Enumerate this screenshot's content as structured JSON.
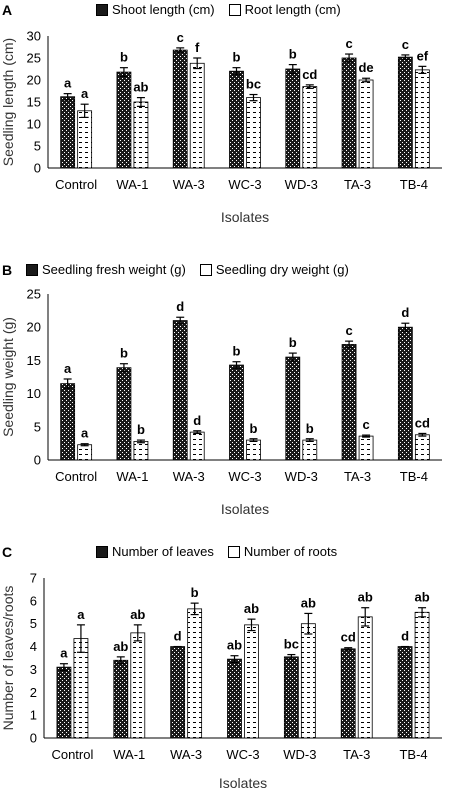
{
  "colors": {
    "series_a_fill": "#1a1a1a",
    "series_b_fill": "#ffffff",
    "axis": "#000000",
    "error_bar": "#000000"
  },
  "chart_data": [
    {
      "panel_label": "A",
      "type": "bar",
      "categories": [
        "Control",
        "WA-1",
        "WA-3",
        "WC-3",
        "WD-3",
        "TA-3",
        "TB-4"
      ],
      "series": [
        {
          "name": "Shoot length (cm)",
          "pattern": "checker",
          "values": [
            16.2,
            21.8,
            26.8,
            22.0,
            22.5,
            25.0,
            25.2
          ],
          "errors": [
            0.7,
            1.0,
            0.5,
            0.8,
            1.0,
            0.9,
            0.5
          ],
          "letters": [
            "a",
            "b",
            "c",
            "b",
            "b",
            "c",
            "c"
          ]
        },
        {
          "name": "Root length (cm)",
          "pattern": "dash",
          "values": [
            13.0,
            15.0,
            23.8,
            16.0,
            18.5,
            20.0,
            22.3
          ],
          "errors": [
            1.5,
            1.0,
            1.2,
            0.7,
            0.4,
            0.4,
            0.8
          ],
          "letters": [
            "a",
            "ab",
            "f",
            "bc",
            "cd",
            "de",
            "ef"
          ]
        }
      ],
      "xlabel": "Isolates",
      "ylabel": "Seedling length (cm)",
      "ylim": [
        0,
        30
      ],
      "yticks": [
        0,
        5,
        10,
        15,
        20,
        25,
        30
      ],
      "grid": false,
      "legend": "top"
    },
    {
      "panel_label": "B",
      "type": "bar",
      "categories": [
        "Control",
        "WA-1",
        "WA-3",
        "WC-3",
        "WD-3",
        "TA-3",
        "TB-4"
      ],
      "series": [
        {
          "name": "Seedling fresh weight (g)",
          "pattern": "checker",
          "values": [
            11.5,
            13.9,
            21.0,
            14.3,
            15.5,
            17.4,
            20.0
          ],
          "errors": [
            0.7,
            0.6,
            0.5,
            0.5,
            0.6,
            0.5,
            0.6
          ],
          "letters": [
            "a",
            "b",
            "d",
            "b",
            "b",
            "c",
            "d"
          ]
        },
        {
          "name": "Seedling dry weight (g)",
          "pattern": "dash",
          "values": [
            2.3,
            2.8,
            4.2,
            3.0,
            3.0,
            3.6,
            3.8
          ],
          "errors": [
            0.15,
            0.2,
            0.2,
            0.2,
            0.2,
            0.15,
            0.2
          ],
          "letters": [
            "a",
            "b",
            "d",
            "b",
            "b",
            "c",
            "cd"
          ]
        }
      ],
      "xlabel": "Isolates",
      "ylabel": "Seedling weight (g)",
      "ylim": [
        0,
        25
      ],
      "yticks": [
        0,
        5,
        10,
        15,
        20,
        25
      ],
      "grid": false,
      "legend": "top"
    },
    {
      "panel_label": "C",
      "type": "bar",
      "categories": [
        "Control",
        "WA-1",
        "WA-3",
        "WC-3",
        "WD-3",
        "TA-3",
        "TB-4"
      ],
      "series": [
        {
          "name": "Number of leaves",
          "pattern": "checker",
          "values": [
            3.1,
            3.4,
            4.0,
            3.45,
            3.55,
            3.9,
            4.0
          ],
          "errors": [
            0.15,
            0.15,
            0.0,
            0.15,
            0.1,
            0.05,
            0.0
          ],
          "letters": [
            "a",
            "ab",
            "d",
            "ab",
            "bc",
            "cd",
            "d"
          ]
        },
        {
          "name": "Number of roots",
          "pattern": "dash",
          "values": [
            4.35,
            4.6,
            5.65,
            4.95,
            5.0,
            5.3,
            5.5
          ],
          "errors": [
            0.6,
            0.35,
            0.25,
            0.25,
            0.45,
            0.4,
            0.2
          ],
          "letters": [
            "a",
            "ab",
            "b",
            "ab",
            "ab",
            "ab",
            "ab"
          ]
        }
      ],
      "xlabel": "Isolates",
      "ylabel": "Number of leaves/roots",
      "ylim": [
        0,
        7
      ],
      "yticks": [
        0,
        1,
        2,
        3,
        4,
        5,
        6,
        7
      ],
      "grid": false,
      "legend": "top"
    }
  ]
}
